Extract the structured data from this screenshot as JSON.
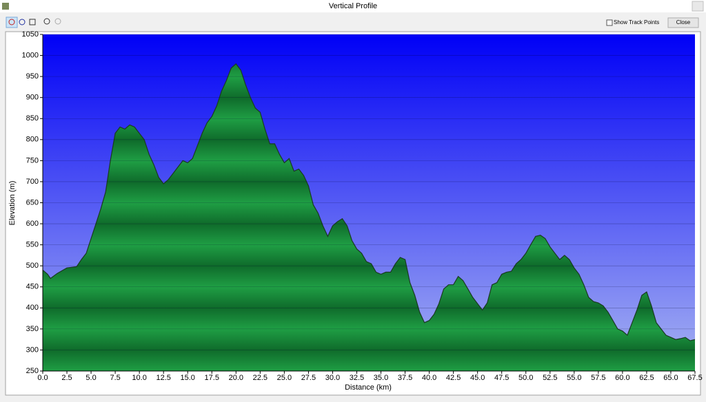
{
  "window": {
    "title": "Vertical Profile",
    "checkbox_label": "Show Track Points",
    "button_label": "Close"
  },
  "chart_data": {
    "type": "area",
    "xlabel": "Distance  (km)",
    "ylabel": "Elevation (m)",
    "xlim": [
      0,
      67.5
    ],
    "ylim": [
      250,
      1050
    ],
    "xticks": [
      {
        "value": 0,
        "label": "0.0"
      },
      2.5,
      {
        "value": 5,
        "label": "5.0"
      },
      7.5,
      {
        "value": 10,
        "label": "10.0"
      },
      12.5,
      {
        "value": 15,
        "label": "15.0"
      },
      17.5,
      {
        "value": 20,
        "label": "20.0"
      },
      22.5,
      {
        "value": 25,
        "label": "25.0"
      },
      27.5,
      {
        "value": 30,
        "label": "30.0"
      },
      32.5,
      {
        "value": 35,
        "label": "35.0"
      },
      37.5,
      {
        "value": 40,
        "label": "40.0"
      },
      42.5,
      {
        "value": 45,
        "label": "45.0"
      },
      47.5,
      {
        "value": 50,
        "label": "50.0"
      },
      52.5,
      {
        "value": 55,
        "label": "55.0"
      },
      57.5,
      {
        "value": 60,
        "label": "60.0"
      },
      62.5,
      {
        "value": 65,
        "label": "65.0"
      },
      67.5
    ],
    "yticks": [
      250,
      300,
      350,
      400,
      450,
      500,
      550,
      600,
      650,
      700,
      750,
      800,
      850,
      900,
      950,
      1000,
      1050
    ],
    "grid": true,
    "x": [
      0,
      0.5,
      0.8,
      1.5,
      2.5,
      3.5,
      4,
      4.5,
      5,
      5.5,
      6,
      6.5,
      7,
      7.5,
      8,
      8.5,
      9,
      9.5,
      10,
      10.5,
      11,
      11.5,
      12,
      12.5,
      13,
      14,
      14.5,
      15,
      15.5,
      16,
      16.5,
      17,
      17.5,
      18,
      18.5,
      19,
      19.5,
      20,
      20.5,
      21,
      21.5,
      22,
      22.5,
      23,
      23.5,
      24,
      24.5,
      25,
      25.5,
      26,
      26.5,
      27,
      27.5,
      28,
      28.5,
      29,
      29.5,
      30,
      30.5,
      31,
      31.5,
      32,
      32.5,
      33,
      33.5,
      34,
      34.5,
      35,
      35.5,
      36,
      36.5,
      37,
      37.5,
      38,
      38.5,
      39,
      39.5,
      40,
      40.5,
      41,
      41.5,
      42,
      42.5,
      43,
      43.5,
      44,
      44.5,
      45,
      45.5,
      46,
      46.5,
      47,
      47.5,
      48,
      48.5,
      49,
      49.5,
      50,
      50.5,
      51,
      51.5,
      52,
      52.5,
      53,
      53.5,
      54,
      54.5,
      55,
      55.5,
      56,
      56.5,
      57,
      57.5,
      58,
      58.5,
      59,
      59.5,
      60,
      60.5,
      61,
      61.5,
      62,
      62.5,
      63,
      63.5,
      64,
      64.5,
      65,
      65.5,
      66,
      66.5,
      67,
      67.5
    ],
    "series": [
      {
        "color": "#1f9e44",
        "values": [
          490,
          480,
          470,
          482,
          495,
          498,
          515,
          530,
          565,
          600,
          635,
          675,
          750,
          815,
          830,
          825,
          835,
          830,
          815,
          800,
          765,
          740,
          710,
          695,
          705,
          735,
          750,
          745,
          755,
          785,
          815,
          840,
          855,
          880,
          915,
          940,
          970,
          980,
          965,
          930,
          900,
          875,
          865,
          825,
          790,
          790,
          765,
          745,
          755,
          725,
          730,
          715,
          690,
          645,
          625,
          595,
          570,
          595,
          605,
          612,
          595,
          560,
          540,
          530,
          510,
          505,
          485,
          480,
          485,
          485,
          505,
          520,
          515,
          460,
          430,
          390,
          365,
          370,
          385,
          410,
          445,
          455,
          455,
          475,
          465,
          445,
          425,
          410,
          395,
          412,
          455,
          460,
          480,
          485,
          487,
          505,
          515,
          530,
          550,
          570,
          573,
          565,
          545,
          530,
          515,
          525,
          515,
          495,
          480,
          455,
          425,
          415,
          412,
          405,
          390,
          370,
          350,
          345,
          335,
          365,
          395,
          430,
          438,
          405,
          365,
          350,
          335,
          330,
          325,
          327,
          330,
          322,
          325
        ]
      }
    ]
  }
}
